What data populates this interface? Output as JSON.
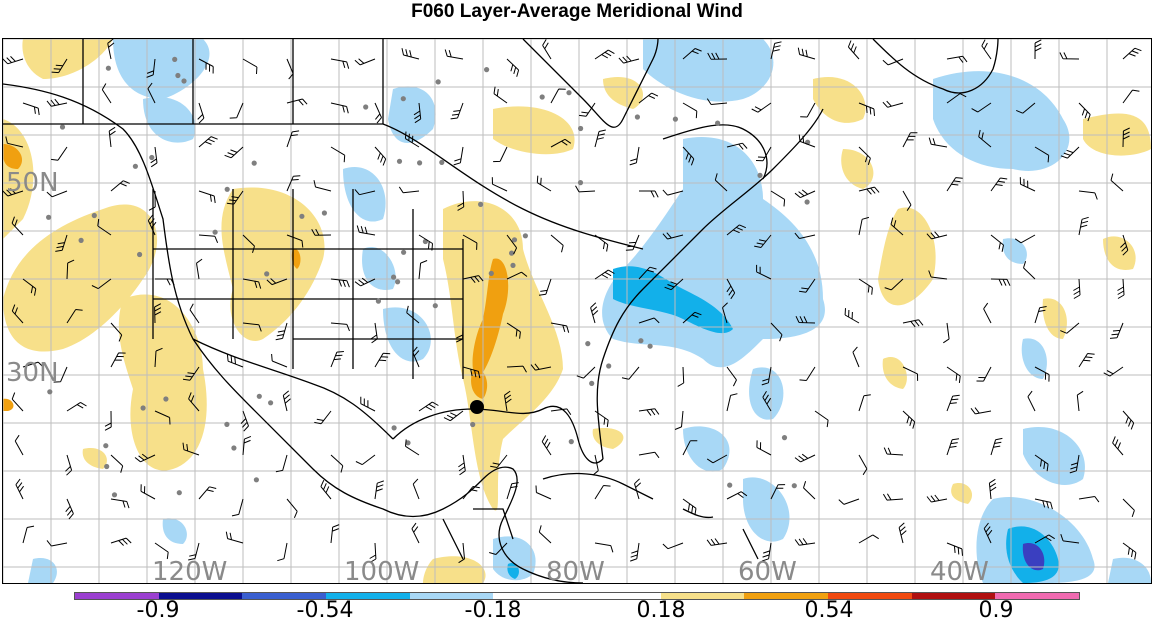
{
  "title": "F060 Layer-Average Meridional Wind",
  "lat_labels": [
    "50N",
    "30N"
  ],
  "lon_labels": [
    "120W",
    "100W",
    "80W",
    "60W",
    "40W"
  ],
  "colorbar": {
    "colors": [
      "#9b3fd0",
      "#0b0f8f",
      "#3a5fd0",
      "#12b0ea",
      "#a8d8f6",
      "#ffffff",
      "#ffffff",
      "#f7e08a",
      "#f0a010",
      "#f04a10",
      "#b01010",
      "#f06ab0"
    ],
    "tick_labels": [
      "-0.9",
      "-0.54",
      "-0.18",
      "0.18",
      "0.54",
      "0.9"
    ]
  },
  "colors": {
    "light_blue": "#a8d8f6",
    "mid_blue": "#12b0ea",
    "dark_blue": "#3a3fc0",
    "light_yellow": "#f7e08a",
    "orange": "#f0a010",
    "gray_dot": "#7f7f7f",
    "grid": "#bdbdbd"
  }
}
